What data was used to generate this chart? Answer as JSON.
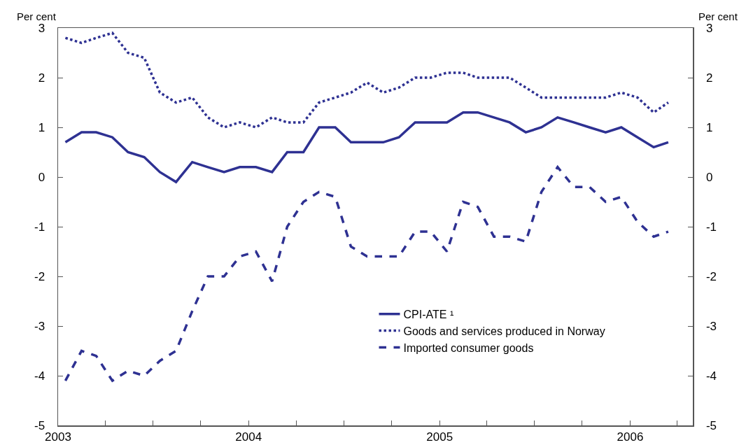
{
  "chart_data": {
    "type": "line",
    "ylabel": "Per cent",
    "y2label": "Per cent",
    "x": [
      "2003-01-15",
      "2003-02-15",
      "2003-03-15",
      "2003-04-15",
      "2003-05-15",
      "2003-06-15",
      "2003-07-15",
      "2003-08-15",
      "2003-09-15",
      "2003-10-15",
      "2003-11-15",
      "2003-12-15",
      "2004-01-15",
      "2004-02-15",
      "2004-03-15",
      "2004-04-15",
      "2004-05-15",
      "2004-06-15",
      "2004-07-15",
      "2004-08-15",
      "2004-09-15",
      "2004-10-15",
      "2004-11-15",
      "2004-12-15",
      "2005-01-15",
      "2005-02-15",
      "2005-03-15",
      "2005-04-15",
      "2005-05-15",
      "2005-06-15",
      "2005-07-15",
      "2005-08-15",
      "2005-09-15",
      "2005-10-15",
      "2005-11-15",
      "2005-12-15",
      "2006-01-15",
      "2006-02-15",
      "2006-03-15"
    ],
    "series": [
      {
        "name": "CPI-ATE ¹",
        "color": "#2e3192",
        "line_style": "solid",
        "values": [
          0.7,
          0.9,
          0.9,
          0.8,
          0.5,
          0.4,
          0.1,
          -0.1,
          0.3,
          0.2,
          0.1,
          0.2,
          0.2,
          0.1,
          0.5,
          0.5,
          1.0,
          1.0,
          0.7,
          0.7,
          0.7,
          0.8,
          1.1,
          1.1,
          1.1,
          1.3,
          1.3,
          1.2,
          1.1,
          0.9,
          1.0,
          1.2,
          1.1,
          1.0,
          0.9,
          1.0,
          0.8,
          0.6,
          0.7
        ]
      },
      {
        "name": "Goods and services produced in Norway",
        "color": "#2e3192",
        "line_style": "dotted",
        "values": [
          2.8,
          2.7,
          2.8,
          2.9,
          2.5,
          2.4,
          1.7,
          1.5,
          1.6,
          1.2,
          1.0,
          1.1,
          1.0,
          1.2,
          1.1,
          1.1,
          1.5,
          1.6,
          1.7,
          1.9,
          1.7,
          1.8,
          2.0,
          2.0,
          2.1,
          2.1,
          2.0,
          2.0,
          2.0,
          1.8,
          1.6,
          1.6,
          1.6,
          1.6,
          1.6,
          1.7,
          1.6,
          1.3,
          1.5
        ]
      },
      {
        "name": "Imported consumer goods",
        "color": "#2e3192",
        "line_style": "dashed",
        "values": [
          -4.1,
          -3.5,
          -3.6,
          -4.1,
          -3.9,
          -4.0,
          -3.7,
          -3.5,
          -2.7,
          -2.0,
          -2.0,
          -1.6,
          -1.5,
          -2.1,
          -1.0,
          -0.5,
          -0.3,
          -0.4,
          -1.4,
          -1.6,
          -1.6,
          -1.6,
          -1.1,
          -1.1,
          -1.5,
          -0.5,
          -0.6,
          -1.2,
          -1.2,
          -1.3,
          -0.3,
          0.2,
          -0.2,
          -0.2,
          -0.5,
          -0.4,
          -0.9,
          -1.2,
          -1.1
        ]
      }
    ],
    "xlim": [
      "2003-01-01",
      "2006-05-01"
    ],
    "xticks": [
      {
        "value": "2003-01-01",
        "label": "2003"
      },
      {
        "value": "2003-04-01",
        "label": null
      },
      {
        "value": "2003-07-01",
        "label": null
      },
      {
        "value": "2003-10-01",
        "label": null
      },
      {
        "value": "2004-01-01",
        "label": "2004"
      },
      {
        "value": "2004-04-01",
        "label": null
      },
      {
        "value": "2004-07-01",
        "label": null
      },
      {
        "value": "2004-10-01",
        "label": null
      },
      {
        "value": "2005-01-01",
        "label": "2005"
      },
      {
        "value": "2005-04-01",
        "label": null
      },
      {
        "value": "2005-07-01",
        "label": null
      },
      {
        "value": "2005-10-01",
        "label": null
      },
      {
        "value": "2006-01-01",
        "label": "2006"
      },
      {
        "value": "2006-04-01",
        "label": null
      }
    ],
    "ylim": [
      -5,
      3
    ],
    "yticks": [
      -5,
      -4,
      -3,
      -2,
      -1,
      0,
      1,
      2,
      3
    ],
    "y2lim": [
      -5,
      3
    ],
    "y2ticks": [
      -5,
      -4,
      -3,
      -2,
      -1,
      0,
      1,
      2,
      3
    ],
    "grid": false,
    "legend": "bottom right",
    "marker": "none"
  }
}
